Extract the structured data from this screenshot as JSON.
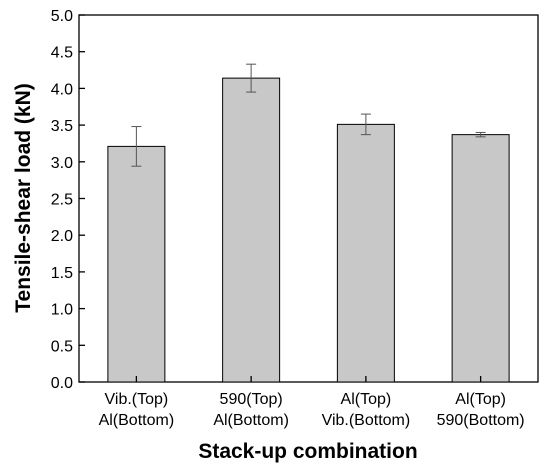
{
  "chart_data": {
    "type": "bar",
    "title": "",
    "xlabel": "Stack-up combination",
    "ylabel": "Tensile-shear load (kN)",
    "ylim": [
      0.0,
      5.0
    ],
    "yticks": [
      "0.0",
      "0.5",
      "1.0",
      "1.5",
      "2.0",
      "2.5",
      "3.0",
      "3.5",
      "4.0",
      "4.5",
      "5.0"
    ],
    "ytick_values": [
      0.0,
      0.5,
      1.0,
      1.5,
      2.0,
      2.5,
      3.0,
      3.5,
      4.0,
      4.5,
      5.0
    ],
    "categories": [
      {
        "line1": "Vib.(Top)",
        "line2": "Al(Bottom)"
      },
      {
        "line1": "590(Top)",
        "line2": "Al(Bottom)"
      },
      {
        "line1": "Al(Top)",
        "line2": "Vib.(Bottom)"
      },
      {
        "line1": "Al(Top)",
        "line2": "590(Bottom)"
      }
    ],
    "values": [
      3.21,
      4.14,
      3.51,
      3.37
    ],
    "errors": [
      0.27,
      0.19,
      0.14,
      0.03
    ],
    "bar_color": "#c8c8c8",
    "bar_edge_color": "#000000",
    "error_color": "#555555",
    "grid": false,
    "legend": "none"
  }
}
